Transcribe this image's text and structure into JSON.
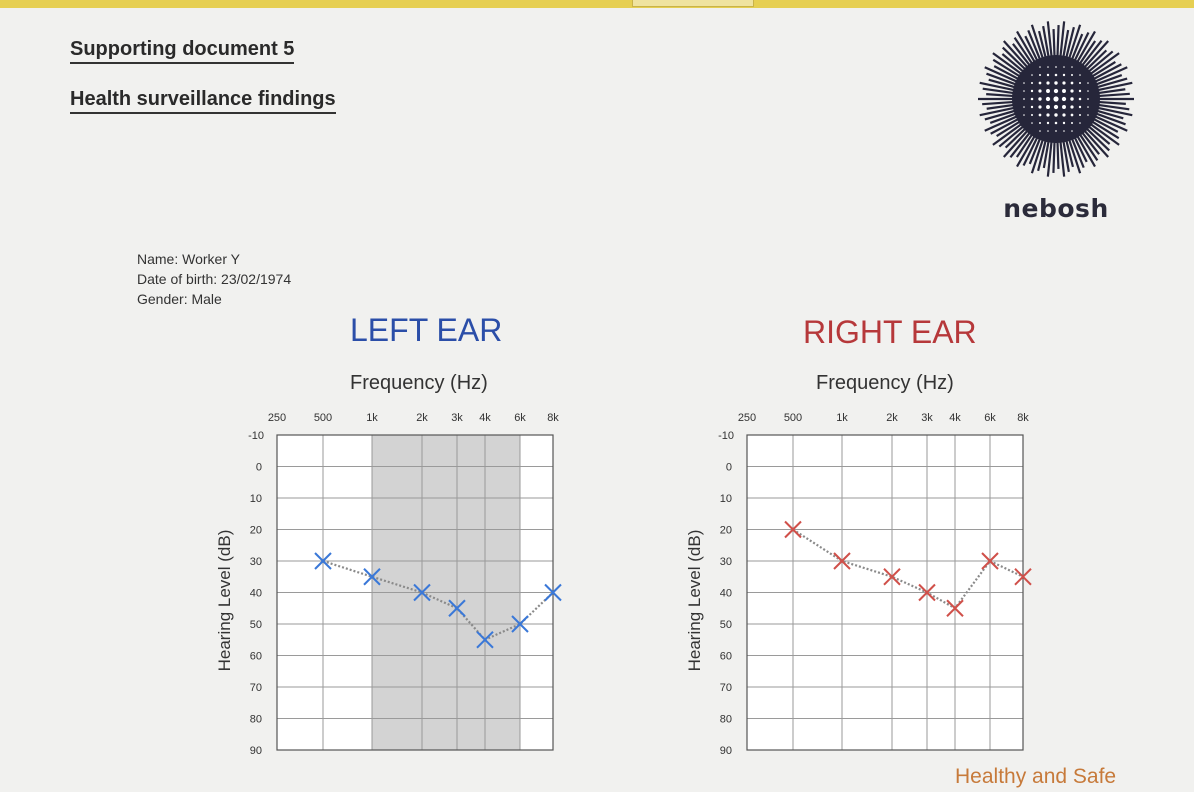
{
  "document": {
    "title": "Supporting document 5",
    "subtitle": "Health surveillance findings",
    "footer": "Healthy and Safe"
  },
  "logo": {
    "icon": "nebosh-logo-icon",
    "text": "nebosh"
  },
  "patient": {
    "name": "Name: Worker Y",
    "dob": "Date of birth: 23/02/1974",
    "gender": "Gender: Male"
  },
  "colors": {
    "left": "#2b4ea8",
    "left_marker": "#3a78d8",
    "right": "#b6383a",
    "right_marker": "#d0504a"
  },
  "chart_data": [
    {
      "type": "line",
      "title": "LEFT EAR",
      "xlabel": "Frequency (Hz)",
      "ylabel": "Hearing Level (dB)",
      "x_ticks": [
        "250",
        "500",
        "1k",
        "2k",
        "3k",
        "4k",
        "6k",
        "8k"
      ],
      "x_hz": [
        250,
        500,
        1000,
        2000,
        3000,
        4000,
        6000,
        8000
      ],
      "y_ticks": [
        "-10",
        "0",
        "10",
        "20",
        "30",
        "40",
        "50",
        "60",
        "70",
        "80",
        "90"
      ],
      "ylim": [
        -10,
        90
      ],
      "y_inverted": true,
      "grid": true,
      "shaded_band_hz": [
        1000,
        6000
      ],
      "series": [
        {
          "x": [
            500,
            1000,
            2000,
            3000,
            4000,
            6000,
            8000
          ],
          "values": [
            30,
            35,
            40,
            45,
            55,
            50,
            40
          ],
          "marker": "x"
        }
      ]
    },
    {
      "type": "line",
      "title": "RIGHT EAR",
      "xlabel": "Frequency (Hz)",
      "ylabel": "Hearing Level (dB)",
      "x_ticks": [
        "250",
        "500",
        "1k",
        "2k",
        "3k",
        "4k",
        "6k",
        "8k"
      ],
      "x_hz": [
        250,
        500,
        1000,
        2000,
        3000,
        4000,
        6000,
        8000
      ],
      "y_ticks": [
        "-10",
        "0",
        "10",
        "20",
        "30",
        "40",
        "50",
        "60",
        "70",
        "80",
        "90"
      ],
      "ylim": [
        -10,
        90
      ],
      "y_inverted": true,
      "grid": true,
      "series": [
        {
          "x": [
            500,
            1000,
            2000,
            3000,
            4000,
            6000,
            8000
          ],
          "values": [
            20,
            30,
            35,
            40,
            45,
            30,
            35
          ],
          "marker": "x"
        }
      ]
    }
  ]
}
